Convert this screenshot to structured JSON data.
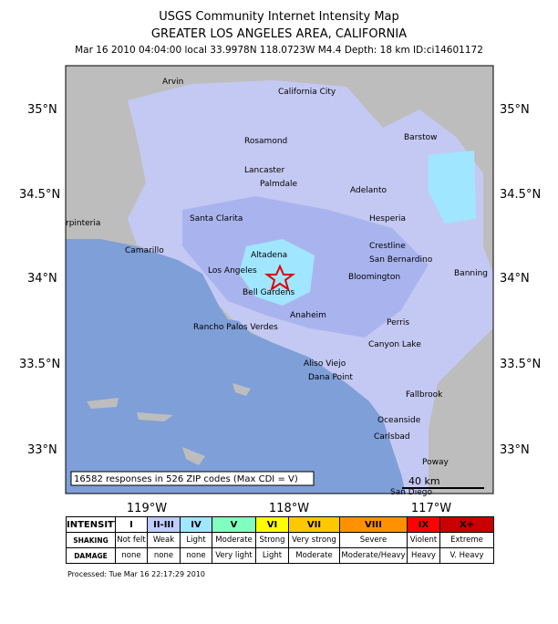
{
  "header": {
    "title": "USGS Community Internet Intensity Map",
    "subtitle": "GREATER LOS ANGELES AREA, CALIFORNIA",
    "info": "Mar 16 2010 04:04:00 local 33.9978N 118.0723W M4.4 Depth: 18 km ID:ci14601172"
  },
  "map": {
    "cities": [
      "Arvin",
      "California City",
      "Rosamond",
      "Barstow",
      "Lancaster",
      "Palmdale",
      "Adelanto",
      "Santa Clarita",
      "Hesperia",
      "rpinteria",
      "Camarillo",
      "Crestline",
      "San Bernardino",
      "Altadena",
      "Los Angeles",
      "Bloomington",
      "Bell Gardens",
      "Banning",
      "Anaheim",
      "Perris",
      "Rancho Palos Verdes",
      "Canyon Lake",
      "Aliso Viejo",
      "Dana Point",
      "Fallbrook",
      "Oceanside",
      "Carlsbad",
      "Poway",
      "San Diego"
    ],
    "lat_labels": [
      "35°N",
      "34.5°N",
      "34°N",
      "33.5°N",
      "33°N"
    ],
    "lon_labels": [
      "119°W",
      "118°W",
      "117°W"
    ],
    "responses_note": "16582 responses in 526 ZIP codes (Max CDI = V)",
    "scale_label": "40 km"
  },
  "legend": {
    "row_headers": [
      "INTENSITY",
      "SHAKING",
      "DAMAGE"
    ],
    "intensity": [
      "I",
      "II-III",
      "IV",
      "V",
      "VI",
      "VII",
      "VIII",
      "IX",
      "X+"
    ],
    "shaking": [
      "Not felt",
      "Weak",
      "Light",
      "Moderate",
      "Strong",
      "Very strong",
      "Severe",
      "Violent",
      "Extreme"
    ],
    "damage": [
      "none",
      "none",
      "none",
      "Very light",
      "Light",
      "Moderate",
      "Moderate/Heavy",
      "Heavy",
      "V. Heavy"
    ]
  },
  "footer": {
    "processed": "Processed: Tue Mar 16 22:17:29 2010"
  }
}
